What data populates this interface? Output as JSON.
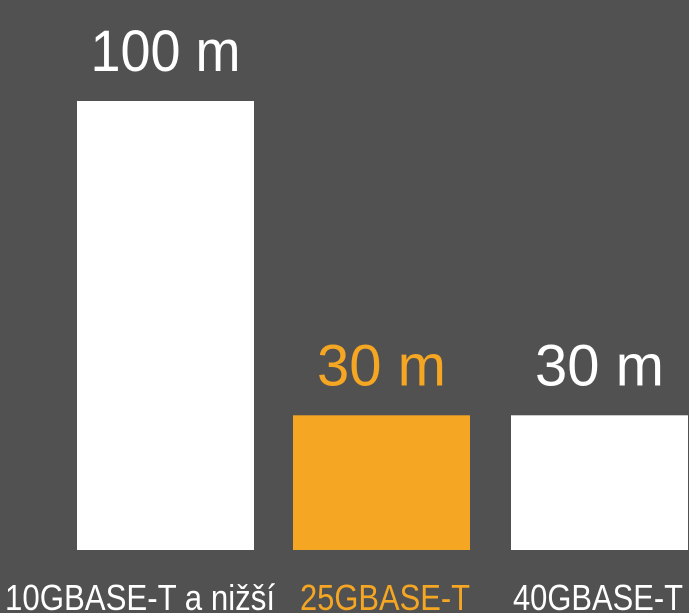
{
  "colors": {
    "background": "#515151",
    "default_bar": "#ffffff",
    "highlight": "#f5a623",
    "default_text": "#ffffff"
  },
  "chart_data": {
    "type": "bar",
    "title": "",
    "xlabel": "",
    "ylabel": "",
    "unit": "m",
    "ylim": [
      0,
      100
    ],
    "grid": false,
    "categories": [
      "10GBASE-T a nižší",
      "25GBASE-T",
      "40GBASE-T"
    ],
    "values": [
      100,
      30,
      30
    ],
    "value_labels": [
      "100 m",
      "30 m",
      "30 m"
    ],
    "highlight_index": 1
  }
}
